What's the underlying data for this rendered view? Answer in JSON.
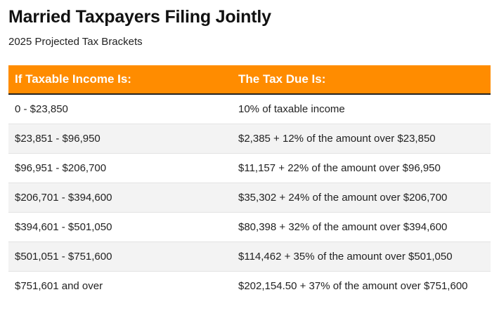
{
  "title": "Married Taxpayers Filing Jointly",
  "subtitle": "2025 Projected Tax Brackets",
  "colors": {
    "header_background": "#ff8c00",
    "header_text": "#ffffff",
    "alt_row_background": "#f3f3f3"
  },
  "table": {
    "headers": [
      "If Taxable Income Is:",
      "The Tax Due Is:"
    ],
    "rows": [
      [
        "0 - $23,850",
        "10% of taxable income"
      ],
      [
        "$23,851 - $96,950",
        "$2,385 + 12% of the amount over $23,850"
      ],
      [
        "$96,951 - $206,700",
        "$11,157 + 22% of the amount over $96,950"
      ],
      [
        "$206,701 - $394,600",
        "$35,302 + 24% of the amount over $206,700"
      ],
      [
        "$394,601 - $501,050",
        "$80,398 + 32% of the amount over $394,600"
      ],
      [
        "$501,051 - $751,600",
        "$114,462 + 35% of the amount over $501,050"
      ],
      [
        "$751,601 and over",
        "$202,154.50 + 37% of the amount over $751,600"
      ]
    ]
  }
}
